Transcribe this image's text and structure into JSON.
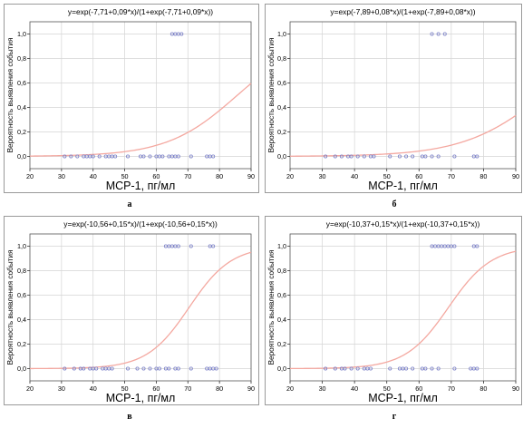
{
  "chart_data": [
    {
      "type": "scatter",
      "panel_letter": "а",
      "title": "y=exp(-7,71+0,09*x)/(1+exp(-7,71+0,09*x))",
      "xlabel": "МСР-1, пг/мл",
      "ylabel": "Вероятность выявления события",
      "xlim": [
        20,
        90
      ],
      "ylim": [
        -0.1,
        1.1
      ],
      "xticks": [
        20,
        30,
        40,
        50,
        60,
        70,
        80,
        90
      ],
      "xtick_labels": [
        "20",
        "30",
        "40",
        "50",
        "60",
        "70",
        "80",
        "90"
      ],
      "yticks": [
        0,
        0.2,
        0.4,
        0.6,
        0.8,
        1.0
      ],
      "ytick_labels": [
        "0,0",
        "0,2",
        "0,4",
        "0,6",
        "0,8",
        "1,0"
      ],
      "grid": true,
      "curve": {
        "a": -7.71,
        "b": 0.09
      },
      "series": [
        {
          "values": [
            {
              "x": 31,
              "y": 0
            },
            {
              "x": 33,
              "y": 0
            },
            {
              "x": 35,
              "y": 0
            },
            {
              "x": 37,
              "y": 0
            },
            {
              "x": 38,
              "y": 0
            },
            {
              "x": 39,
              "y": 0
            },
            {
              "x": 40,
              "y": 0
            },
            {
              "x": 42,
              "y": 0
            },
            {
              "x": 44,
              "y": 0
            },
            {
              "x": 45,
              "y": 0
            },
            {
              "x": 46,
              "y": 0
            },
            {
              "x": 47,
              "y": 0
            },
            {
              "x": 51,
              "y": 0
            },
            {
              "x": 55,
              "y": 0
            },
            {
              "x": 56,
              "y": 0
            },
            {
              "x": 58,
              "y": 0
            },
            {
              "x": 60,
              "y": 0
            },
            {
              "x": 61,
              "y": 0
            },
            {
              "x": 62,
              "y": 0
            },
            {
              "x": 64,
              "y": 0
            },
            {
              "x": 65,
              "y": 0
            },
            {
              "x": 66,
              "y": 0
            },
            {
              "x": 67,
              "y": 0
            },
            {
              "x": 71,
              "y": 0
            },
            {
              "x": 76,
              "y": 0
            },
            {
              "x": 77,
              "y": 0
            },
            {
              "x": 78,
              "y": 0
            },
            {
              "x": 65,
              "y": 1
            },
            {
              "x": 66,
              "y": 1
            },
            {
              "x": 67,
              "y": 1
            },
            {
              "x": 68,
              "y": 1
            }
          ]
        }
      ]
    },
    {
      "type": "scatter",
      "panel_letter": "б",
      "title": "y=exp(-7,89+0,08*x)/(1+exp(-7,89+0,08*x))",
      "xlabel": "МСР-1, пг/мл",
      "ylabel": "Вероятность выявления события",
      "xlim": [
        20,
        90
      ],
      "ylim": [
        -0.1,
        1.1
      ],
      "xticks": [
        20,
        30,
        40,
        50,
        60,
        70,
        80,
        90
      ],
      "xtick_labels": [
        "20",
        "30",
        "40",
        "50",
        "60",
        "70",
        "80",
        "90"
      ],
      "yticks": [
        0,
        0.2,
        0.4,
        0.6,
        0.8,
        1.0
      ],
      "ytick_labels": [
        "0,0",
        "0,2",
        "0,4",
        "0,6",
        "0,8",
        "1,0"
      ],
      "grid": true,
      "curve": {
        "a": -7.89,
        "b": 0.08
      },
      "series": [
        {
          "values": [
            {
              "x": 31,
              "y": 0
            },
            {
              "x": 34,
              "y": 0
            },
            {
              "x": 36,
              "y": 0
            },
            {
              "x": 38,
              "y": 0
            },
            {
              "x": 39,
              "y": 0
            },
            {
              "x": 41,
              "y": 0
            },
            {
              "x": 43,
              "y": 0
            },
            {
              "x": 45,
              "y": 0
            },
            {
              "x": 46,
              "y": 0
            },
            {
              "x": 51,
              "y": 0
            },
            {
              "x": 54,
              "y": 0
            },
            {
              "x": 56,
              "y": 0
            },
            {
              "x": 58,
              "y": 0
            },
            {
              "x": 61,
              "y": 0
            },
            {
              "x": 62,
              "y": 0
            },
            {
              "x": 64,
              "y": 0
            },
            {
              "x": 66,
              "y": 0
            },
            {
              "x": 71,
              "y": 0
            },
            {
              "x": 77,
              "y": 0
            },
            {
              "x": 78,
              "y": 0
            },
            {
              "x": 64,
              "y": 1
            },
            {
              "x": 66,
              "y": 1
            },
            {
              "x": 68,
              "y": 1
            }
          ]
        }
      ]
    },
    {
      "type": "scatter",
      "panel_letter": "в",
      "title": "y=exp(-10,56+0,15*x)/(1+exp(-10,56+0,15*x))",
      "xlabel": "МСР-1, пг/мл",
      "ylabel": "Вероятность выявления события",
      "xlim": [
        20,
        90
      ],
      "ylim": [
        -0.1,
        1.1
      ],
      "xticks": [
        20,
        30,
        40,
        50,
        60,
        70,
        80,
        90
      ],
      "xtick_labels": [
        "20",
        "30",
        "40",
        "50",
        "60",
        "70",
        "80",
        "90"
      ],
      "yticks": [
        0,
        0.2,
        0.4,
        0.6,
        0.8,
        1.0
      ],
      "ytick_labels": [
        "0,0",
        "0,2",
        "0,4",
        "0,6",
        "0,8",
        "1,0"
      ],
      "grid": true,
      "curve": {
        "a": -10.56,
        "b": 0.15
      },
      "series": [
        {
          "values": [
            {
              "x": 31,
              "y": 0
            },
            {
              "x": 34,
              "y": 0
            },
            {
              "x": 36,
              "y": 0
            },
            {
              "x": 37,
              "y": 0
            },
            {
              "x": 39,
              "y": 0
            },
            {
              "x": 40,
              "y": 0
            },
            {
              "x": 41,
              "y": 0
            },
            {
              "x": 43,
              "y": 0
            },
            {
              "x": 44,
              "y": 0
            },
            {
              "x": 45,
              "y": 0
            },
            {
              "x": 46,
              "y": 0
            },
            {
              "x": 51,
              "y": 0
            },
            {
              "x": 54,
              "y": 0
            },
            {
              "x": 56,
              "y": 0
            },
            {
              "x": 58,
              "y": 0
            },
            {
              "x": 60,
              "y": 0
            },
            {
              "x": 61,
              "y": 0
            },
            {
              "x": 63,
              "y": 0
            },
            {
              "x": 64,
              "y": 0
            },
            {
              "x": 66,
              "y": 0
            },
            {
              "x": 67,
              "y": 0
            },
            {
              "x": 71,
              "y": 0
            },
            {
              "x": 76,
              "y": 0
            },
            {
              "x": 77,
              "y": 0
            },
            {
              "x": 78,
              "y": 0
            },
            {
              "x": 79,
              "y": 0
            },
            {
              "x": 63,
              "y": 1
            },
            {
              "x": 64,
              "y": 1
            },
            {
              "x": 65,
              "y": 1
            },
            {
              "x": 66,
              "y": 1
            },
            {
              "x": 67,
              "y": 1
            },
            {
              "x": 71,
              "y": 1
            },
            {
              "x": 77,
              "y": 1
            },
            {
              "x": 78,
              "y": 1
            }
          ]
        }
      ]
    },
    {
      "type": "scatter",
      "panel_letter": "г",
      "title": "y=exp(-10,37+0,15*x)/(1+exp(-10,37+0,15*x))",
      "xlabel": "МСР-1, пг/мл",
      "ylabel": "Вероятность выявления события",
      "xlim": [
        20,
        90
      ],
      "ylim": [
        -0.1,
        1.1
      ],
      "xticks": [
        20,
        30,
        40,
        50,
        60,
        70,
        80,
        90
      ],
      "xtick_labels": [
        "20",
        "30",
        "40",
        "50",
        "60",
        "70",
        "80",
        "90"
      ],
      "yticks": [
        0,
        0.2,
        0.4,
        0.6,
        0.8,
        1.0
      ],
      "ytick_labels": [
        "0,0",
        "0,2",
        "0,4",
        "0,6",
        "0,8",
        "1,0"
      ],
      "grid": true,
      "curve": {
        "a": -10.37,
        "b": 0.15
      },
      "series": [
        {
          "values": [
            {
              "x": 31,
              "y": 0
            },
            {
              "x": 34,
              "y": 0
            },
            {
              "x": 36,
              "y": 0
            },
            {
              "x": 37,
              "y": 0
            },
            {
              "x": 39,
              "y": 0
            },
            {
              "x": 41,
              "y": 0
            },
            {
              "x": 43,
              "y": 0
            },
            {
              "x": 44,
              "y": 0
            },
            {
              "x": 45,
              "y": 0
            },
            {
              "x": 51,
              "y": 0
            },
            {
              "x": 54,
              "y": 0
            },
            {
              "x": 55,
              "y": 0
            },
            {
              "x": 56,
              "y": 0
            },
            {
              "x": 58,
              "y": 0
            },
            {
              "x": 61,
              "y": 0
            },
            {
              "x": 62,
              "y": 0
            },
            {
              "x": 64,
              "y": 0
            },
            {
              "x": 66,
              "y": 0
            },
            {
              "x": 71,
              "y": 0
            },
            {
              "x": 76,
              "y": 0
            },
            {
              "x": 77,
              "y": 0
            },
            {
              "x": 78,
              "y": 0
            },
            {
              "x": 64,
              "y": 1
            },
            {
              "x": 65,
              "y": 1
            },
            {
              "x": 66,
              "y": 1
            },
            {
              "x": 67,
              "y": 1
            },
            {
              "x": 68,
              "y": 1
            },
            {
              "x": 69,
              "y": 1
            },
            {
              "x": 70,
              "y": 1
            },
            {
              "x": 71,
              "y": 1
            },
            {
              "x": 77,
              "y": 1
            },
            {
              "x": 78,
              "y": 1
            }
          ]
        }
      ]
    }
  ],
  "colors": {
    "curve": "#f4a8a0",
    "points": "#7b80c8",
    "grid": "#d4d4d4",
    "frame": "#9a9a9a",
    "axis": "#000000"
  }
}
